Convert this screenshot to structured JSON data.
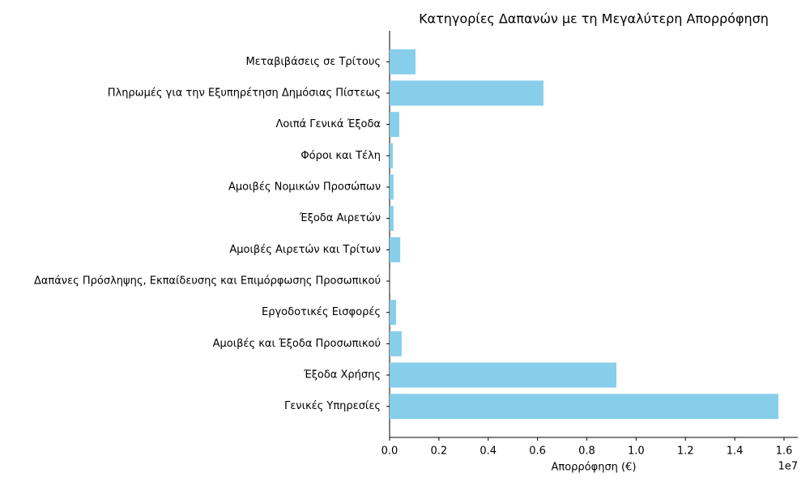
{
  "chart_data": {
    "type": "barh",
    "title": "Κατηγορίες Δαπανών με τη Μεγαλύτερη Απορρόφηση",
    "xlabel": "Απορρόφηση (€)",
    "x_offset_label": "1e7",
    "categories": [
      "Γενικές Υπηρεσίες",
      "Έξοδα Χρήσης",
      "Αμοιβές και Έξοδα Προσωπικού",
      "Εργοδοτικές Εισφορές",
      "Δαπάνες Πρόσληψης, Εκπαίδευσης και Επιμόρφωσης Προσωπικού",
      "Αμοιβές Αιρετών και Τρίτων",
      "Έξοδα Αιρετών",
      "Αμοιβές Νομικών Προσώπων",
      "Φόροι και Τέλη",
      "Λοιπά Γενικά Έξοδα",
      "Πληρωμές για την Εξυπηρέτηση Δημόσιας Πίστεως",
      "Μεταβιβάσεις σε Τρίτους"
    ],
    "values": [
      15770000,
      9200000,
      490000,
      260000,
      5000,
      430000,
      160000,
      160000,
      130000,
      390000,
      6240000,
      1050000
    ],
    "color": "#87ceeb",
    "xlim": [
      0,
      16560000
    ],
    "xticks": [
      {
        "value": 0,
        "label": "0.0"
      },
      {
        "value": 2000000,
        "label": "0.2"
      },
      {
        "value": 4000000,
        "label": "0.4"
      },
      {
        "value": 6000000,
        "label": "0.6"
      },
      {
        "value": 8000000,
        "label": "0.8"
      },
      {
        "value": 10000000,
        "label": "1.0"
      },
      {
        "value": 12000000,
        "label": "1.2"
      },
      {
        "value": 14000000,
        "label": "1.4"
      },
      {
        "value": 16000000,
        "label": "1.6"
      }
    ]
  }
}
